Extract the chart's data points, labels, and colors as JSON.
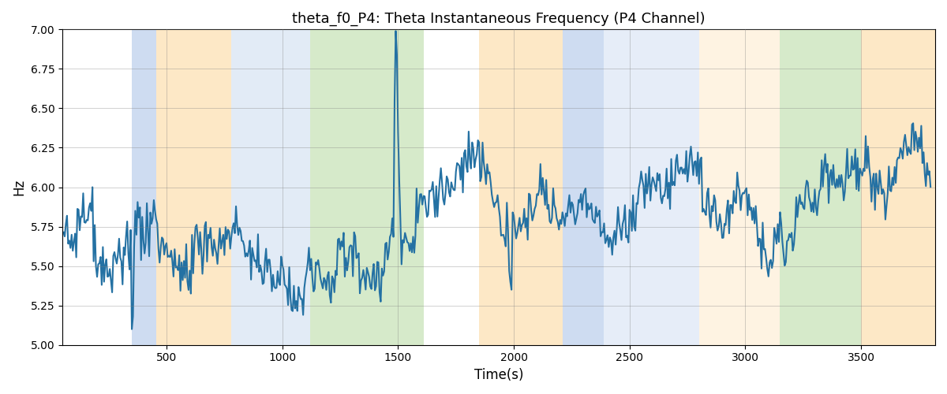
{
  "title": "theta_f0_P4: Theta Instantaneous Frequency (P4 Channel)",
  "xlabel": "Time(s)",
  "ylabel": "Hz",
  "ylim": [
    5.0,
    7.0
  ],
  "xlim": [
    50,
    3820
  ],
  "yticks": [
    5.0,
    5.25,
    5.5,
    5.75,
    6.0,
    6.25,
    6.5,
    6.75,
    7.0
  ],
  "xticks": [
    500,
    1000,
    1500,
    2000,
    2500,
    3000,
    3500
  ],
  "line_color": "#2471a3",
  "line_width": 1.5,
  "bg_color": "white",
  "bands": [
    {
      "xmin": 350,
      "xmax": 455,
      "color": "#aec6e8",
      "alpha": 0.6
    },
    {
      "xmin": 455,
      "xmax": 780,
      "color": "#fdd9a0",
      "alpha": 0.6
    },
    {
      "xmin": 780,
      "xmax": 1120,
      "color": "#aec6e8",
      "alpha": 0.35
    },
    {
      "xmin": 1120,
      "xmax": 1610,
      "color": "#b5d9a0",
      "alpha": 0.55
    },
    {
      "xmin": 1850,
      "xmax": 2210,
      "color": "#fdd9a0",
      "alpha": 0.6
    },
    {
      "xmin": 2210,
      "xmax": 2390,
      "color": "#aec6e8",
      "alpha": 0.6
    },
    {
      "xmin": 2390,
      "xmax": 2800,
      "color": "#aec6e8",
      "alpha": 0.3
    },
    {
      "xmin": 2800,
      "xmax": 3150,
      "color": "#fdd9a0",
      "alpha": 0.3
    },
    {
      "xmin": 3150,
      "xmax": 3500,
      "color": "#b5d9a0",
      "alpha": 0.55
    },
    {
      "xmin": 3500,
      "xmax": 3820,
      "color": "#fdd9a0",
      "alpha": 0.6
    }
  ],
  "n_points": 750,
  "seed": 12
}
